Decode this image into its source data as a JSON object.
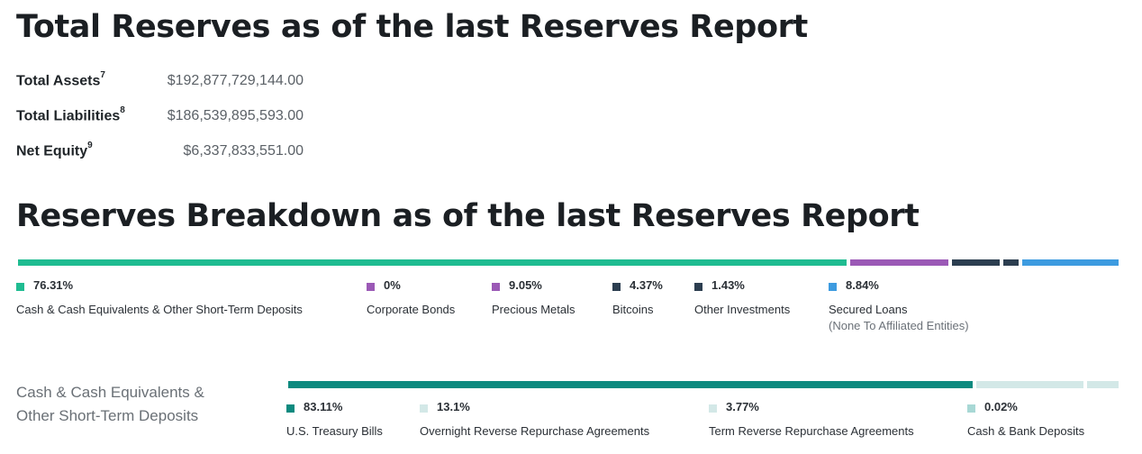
{
  "title": "Total Reserves as of the last Reserves Report",
  "totals": [
    {
      "label": "Total Assets",
      "note": "7",
      "value": "$192,877,729,144.00"
    },
    {
      "label": "Total Liabilities",
      "note": "8",
      "value": "$186,539,895,593.00"
    },
    {
      "label": "Net Equity",
      "note": "9",
      "value": "$6,337,833,551.00"
    }
  ],
  "breakdown_title": "Reserves Breakdown as of the last Reserves Report",
  "cash_heading_line1": "Cash & Cash Equivalents &",
  "cash_heading_line2": "Other Short-Term Deposits",
  "colors": {
    "teal": "#1fbc91",
    "purple": "#9b59b6",
    "navy": "#2c3e50",
    "blue": "#3d9be0",
    "dark_teal": "#0d8a7f",
    "light_teal": "#d3e8e7",
    "pale_teal": "#a8d8d5"
  },
  "chart_data": [
    {
      "type": "bar",
      "orientation": "horizontal-stacked",
      "categories": [
        "Cash & Cash Equivalents & Other Short-Term Deposits",
        "Corporate Bonds",
        "Precious Metals",
        "Bitcoins",
        "Other Investments",
        "Secured Loans"
      ],
      "category_notes": [
        "",
        "",
        "",
        "",
        "",
        "(None To Affiliated Entities)"
      ],
      "values": [
        76.31,
        0,
        9.05,
        4.37,
        1.43,
        8.84
      ],
      "value_labels": [
        "76.31%",
        "0%",
        "9.05%",
        "4.37%",
        "1.43%",
        "8.84%"
      ],
      "unit": "%",
      "colors": [
        "#1fbc91",
        "#9b59b6",
        "#9b59b6",
        "#2c3e50",
        "#2c3e50",
        "#3d9be0"
      ]
    },
    {
      "type": "bar",
      "orientation": "horizontal-stacked",
      "categories": [
        "U.S. Treasury Bills",
        "Overnight Reverse Repurchase Agreements",
        "Term Reverse Repurchase Agreements",
        "Cash & Bank Deposits"
      ],
      "values": [
        83.11,
        13.1,
        3.77,
        0.02
      ],
      "value_labels": [
        "83.11%",
        "13.1%",
        "3.77%",
        "0.02%"
      ],
      "unit": "%",
      "colors": [
        "#0d8a7f",
        "#d3e8e7",
        "#d3e8e7",
        "#a8d8d5"
      ]
    }
  ]
}
